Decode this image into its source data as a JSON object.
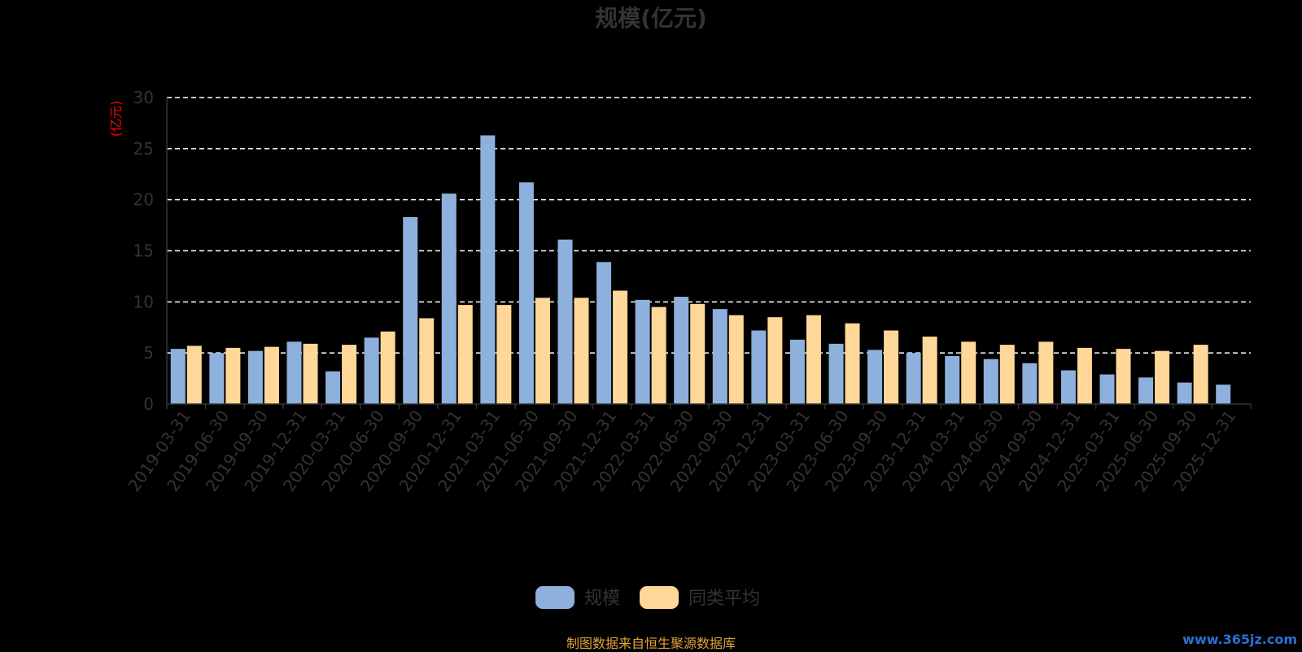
{
  "chart_data": {
    "type": "bar",
    "title": "规模(亿元)",
    "ylabel": "(亿元)",
    "ylim": [
      0,
      30
    ],
    "yticks": [
      0,
      5,
      10,
      15,
      20,
      25,
      30
    ],
    "grid": true,
    "legend_position": "bottom-center",
    "categories": [
      "2019-03-31",
      "2019-06-30",
      "2019-09-30",
      "2019-12-31",
      "2020-03-31",
      "2020-06-30",
      "2020-09-30",
      "2020-12-31",
      "2021-03-31",
      "2021-06-30",
      "2021-09-30",
      "2021-12-31",
      "2022-03-31",
      "2022-06-30",
      "2022-09-30",
      "2022-12-31",
      "2023-03-31",
      "2023-06-30",
      "2023-09-30",
      "2023-12-31",
      "2024-03-31",
      "2024-06-30",
      "2024-09-30",
      "2024-12-31",
      "2025-03-31",
      "2025-06-30",
      "2025-09-30",
      "2025-12-31"
    ],
    "series": [
      {
        "name": "规模",
        "color": "#8eb0dd",
        "values": [
          5.4,
          5.0,
          5.2,
          6.1,
          3.2,
          6.5,
          18.3,
          20.6,
          26.3,
          21.7,
          16.1,
          13.9,
          10.2,
          10.5,
          9.3,
          7.2,
          6.3,
          5.9,
          5.3,
          5.0,
          4.7,
          4.4,
          4.0,
          3.3,
          2.9,
          2.6,
          2.1,
          1.9
        ]
      },
      {
        "name": "同类平均",
        "color": "#ffd899",
        "values": [
          5.7,
          5.5,
          5.6,
          5.9,
          5.8,
          7.1,
          8.4,
          9.7,
          9.7,
          10.4,
          10.4,
          11.1,
          9.5,
          9.8,
          8.7,
          8.5,
          8.7,
          7.9,
          7.2,
          6.6,
          6.1,
          5.8,
          6.1,
          5.5,
          5.4,
          5.2,
          5.8,
          null
        ]
      }
    ]
  },
  "footer": {
    "source_text": "制图数据来自恒生聚源数据库",
    "watermark": "www.365jz.com"
  }
}
